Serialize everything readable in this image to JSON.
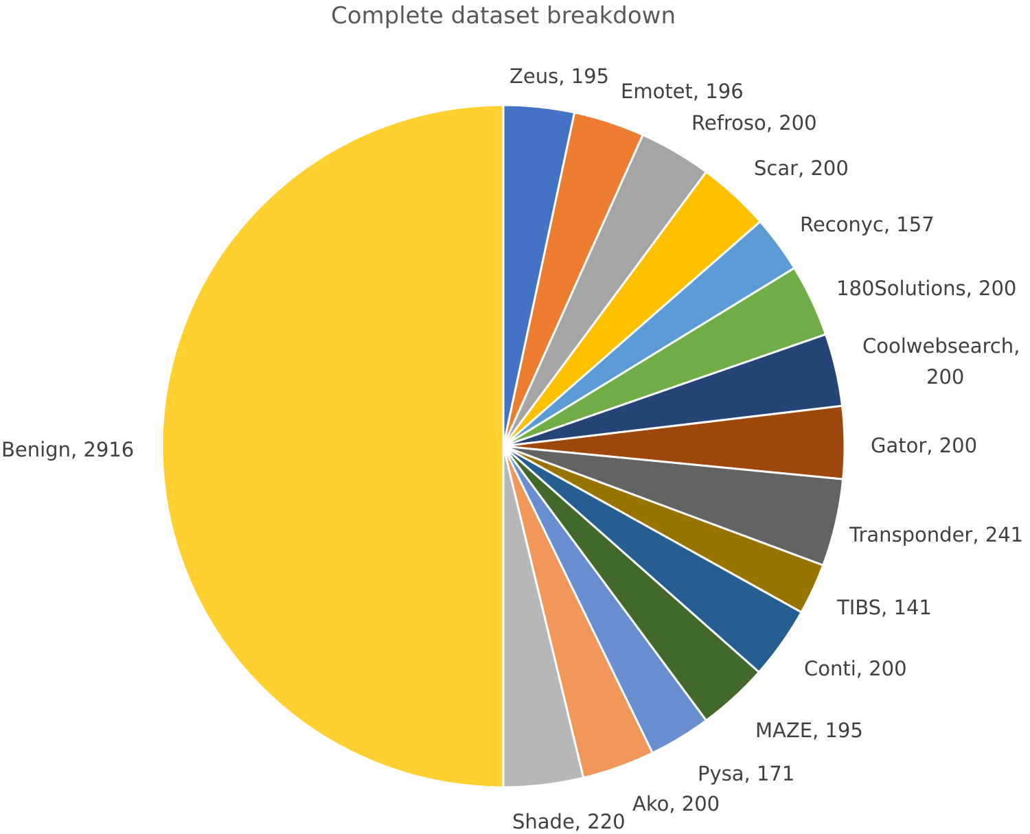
{
  "chart_data": {
    "type": "pie",
    "title": "Complete dataset breakdown",
    "start": "12 o'clock",
    "direction": "clockwise",
    "label_format": "{name}, {value}",
    "slices": [
      {
        "name": "Zeus",
        "value": 195,
        "color": "#4472C4",
        "label_lines": [
          "Zeus, 195"
        ]
      },
      {
        "name": "Emotet",
        "value": 196,
        "color": "#ED7D31",
        "label_lines": [
          "Emotet, 196"
        ]
      },
      {
        "name": "Refroso",
        "value": 200,
        "color": "#A5A5A5",
        "label_lines": [
          "Refroso, 200"
        ]
      },
      {
        "name": "Scar",
        "value": 200,
        "color": "#FFC000",
        "label_lines": [
          "Scar, 200"
        ]
      },
      {
        "name": "Reconyc",
        "value": 157,
        "color": "#5B9BD5",
        "label_lines": [
          "Reconyc, 157"
        ]
      },
      {
        "name": "180Solutions",
        "value": 200,
        "color": "#70AD47",
        "label_lines": [
          "180Solutions, 200"
        ]
      },
      {
        "name": "Coolwebsearch",
        "value": 200,
        "color": "#264478",
        "label_lines": [
          "Coolwebsearch,",
          "200"
        ]
      },
      {
        "name": "Gator",
        "value": 200,
        "color": "#9E480E",
        "label_lines": [
          "Gator, 200"
        ]
      },
      {
        "name": "Transponder",
        "value": 241,
        "color": "#636363",
        "label_lines": [
          "Transponder, 241"
        ]
      },
      {
        "name": "TIBS",
        "value": 141,
        "color": "#997300",
        "label_lines": [
          "TIBS, 141"
        ]
      },
      {
        "name": "Conti",
        "value": 200,
        "color": "#255E91",
        "label_lines": [
          "Conti, 200"
        ]
      },
      {
        "name": "MAZE",
        "value": 195,
        "color": "#43682B",
        "label_lines": [
          "MAZE, 195"
        ]
      },
      {
        "name": "Pysa",
        "value": 171,
        "color": "#698ED0",
        "label_lines": [
          "Pysa, 171"
        ]
      },
      {
        "name": "Ako",
        "value": 200,
        "color": "#F1975A",
        "label_lines": [
          "Ako, 200"
        ]
      },
      {
        "name": "Shade",
        "value": 220,
        "color": "#B7B7B7",
        "label_lines": [
          "Shade, 220"
        ]
      },
      {
        "name": "Benign",
        "value": 2916,
        "color": "#FFD02F",
        "label_lines": [
          "Benign, 2916"
        ]
      }
    ]
  }
}
